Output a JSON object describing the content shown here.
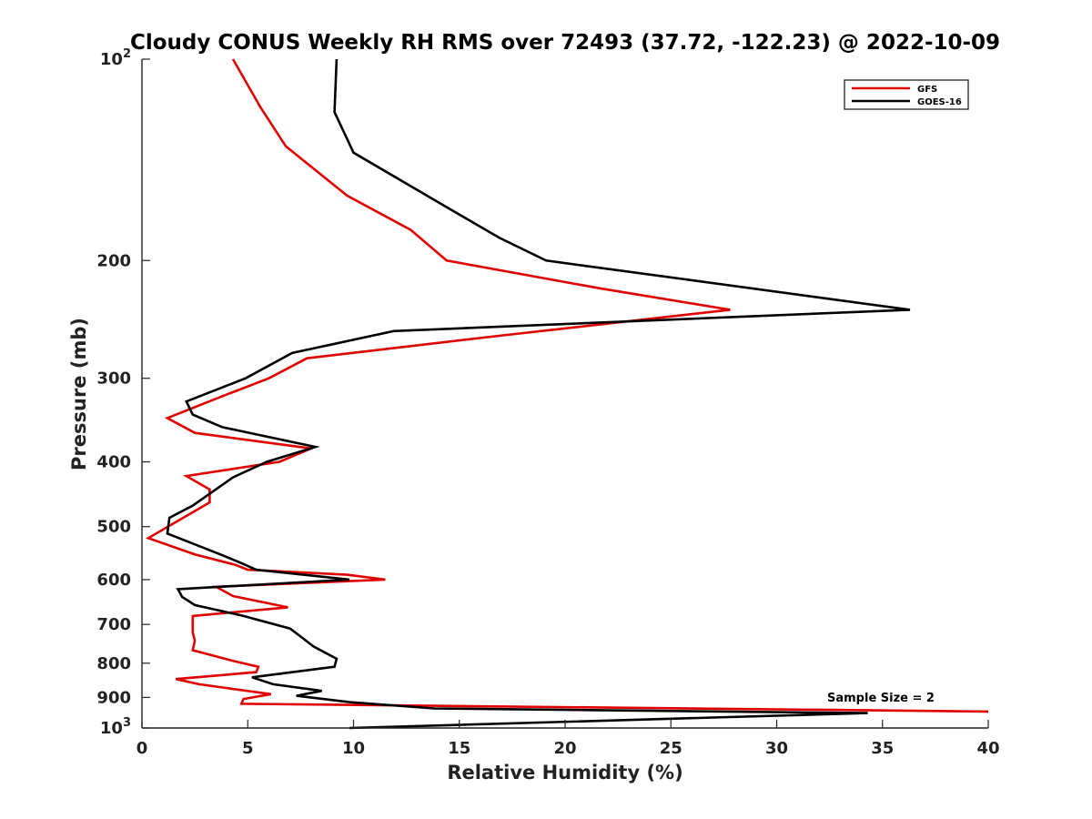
{
  "chart_data": {
    "type": "line",
    "title": "Cloudy CONUS Weekly RH RMS over 72493 (37.72, -122.23) @ 2022-10-09",
    "xlabel": "Relative Humidity (%)",
    "ylabel": "Pressure (mb)",
    "xlim": [
      0,
      40
    ],
    "ylim": [
      100,
      1000
    ],
    "y_scale": "log",
    "y_reversed": true,
    "grid": false,
    "legend_position": "top-right",
    "annotation": "Sample Size = 2",
    "x_ticks": [
      {
        "value": 0,
        "label": "0"
      },
      {
        "value": 5,
        "label": "5"
      },
      {
        "value": 10,
        "label": "10"
      },
      {
        "value": 15,
        "label": "15"
      },
      {
        "value": 20,
        "label": "20"
      },
      {
        "value": 25,
        "label": "25"
      },
      {
        "value": 30,
        "label": "30"
      },
      {
        "value": 35,
        "label": "35"
      },
      {
        "value": 40,
        "label": "40"
      }
    ],
    "y_ticks": [
      {
        "value": 100,
        "base": "10",
        "exp": "2"
      },
      {
        "value": 200,
        "label": "200"
      },
      {
        "value": 300,
        "label": "300"
      },
      {
        "value": 400,
        "label": "400"
      },
      {
        "value": 500,
        "label": "500"
      },
      {
        "value": 600,
        "label": "600"
      },
      {
        "value": 700,
        "label": "700"
      },
      {
        "value": 800,
        "label": "800"
      },
      {
        "value": 900,
        "label": "900"
      },
      {
        "value": 1000,
        "base": "10",
        "exp": "3"
      }
    ],
    "series": [
      {
        "name": "GFS",
        "color": "#e00000",
        "points": [
          [
            4.3,
            100
          ],
          [
            5.6,
            118
          ],
          [
            6.8,
            135
          ],
          [
            9.7,
            160
          ],
          [
            12.7,
            180
          ],
          [
            14.4,
            200
          ],
          [
            21.6,
            220
          ],
          [
            27.8,
            237
          ],
          [
            16.5,
            260
          ],
          [
            7.8,
            280
          ],
          [
            6.0,
            300
          ],
          [
            3.7,
            320
          ],
          [
            1.2,
            344
          ],
          [
            2.5,
            362
          ],
          [
            8.0,
            382
          ],
          [
            6.5,
            400
          ],
          [
            2.1,
            420
          ],
          [
            3.2,
            440
          ],
          [
            3.2,
            460
          ],
          [
            2.1,
            482
          ],
          [
            0.3,
            520
          ],
          [
            2.5,
            550
          ],
          [
            4.4,
            570
          ],
          [
            5.0,
            580
          ],
          [
            9.7,
            590
          ],
          [
            11.5,
            600
          ],
          [
            3.5,
            615
          ],
          [
            4.3,
            635
          ],
          [
            6.9,
            660
          ],
          [
            2.4,
            680
          ],
          [
            2.4,
            720
          ],
          [
            2.5,
            740
          ],
          [
            2.4,
            765
          ],
          [
            4.4,
            795
          ],
          [
            5.5,
            810
          ],
          [
            5.4,
            825
          ],
          [
            1.6,
            845
          ],
          [
            2.7,
            860
          ],
          [
            6.1,
            890
          ],
          [
            4.8,
            905
          ],
          [
            4.7,
            920
          ],
          [
            40.0,
            945
          ]
        ]
      },
      {
        "name": "GOES-16",
        "color": "#000000",
        "points": [
          [
            9.2,
            100
          ],
          [
            9.1,
            120
          ],
          [
            10.0,
            138
          ],
          [
            14.2,
            165
          ],
          [
            16.9,
            185
          ],
          [
            19.1,
            200
          ],
          [
            36.3,
            237
          ],
          [
            11.9,
            255
          ],
          [
            7.1,
            275
          ],
          [
            4.9,
            300
          ],
          [
            2.1,
            325
          ],
          [
            2.4,
            340
          ],
          [
            3.8,
            355
          ],
          [
            8.2,
            380
          ],
          [
            5.9,
            400
          ],
          [
            4.3,
            422
          ],
          [
            2.4,
            465
          ],
          [
            1.3,
            485
          ],
          [
            1.2,
            512
          ],
          [
            3.7,
            550
          ],
          [
            4.6,
            565
          ],
          [
            5.4,
            580
          ],
          [
            9.8,
            600
          ],
          [
            1.7,
            620
          ],
          [
            1.9,
            637
          ],
          [
            2.5,
            655
          ],
          [
            4.8,
            680
          ],
          [
            7.0,
            710
          ],
          [
            7.5,
            730
          ],
          [
            8.1,
            755
          ],
          [
            9.2,
            788
          ],
          [
            9.1,
            810
          ],
          [
            5.2,
            840
          ],
          [
            6.2,
            860
          ],
          [
            8.5,
            880
          ],
          [
            7.3,
            895
          ],
          [
            9.8,
            915
          ],
          [
            13.8,
            935
          ],
          [
            34.3,
            950
          ],
          [
            9.8,
            1000
          ]
        ]
      }
    ]
  }
}
